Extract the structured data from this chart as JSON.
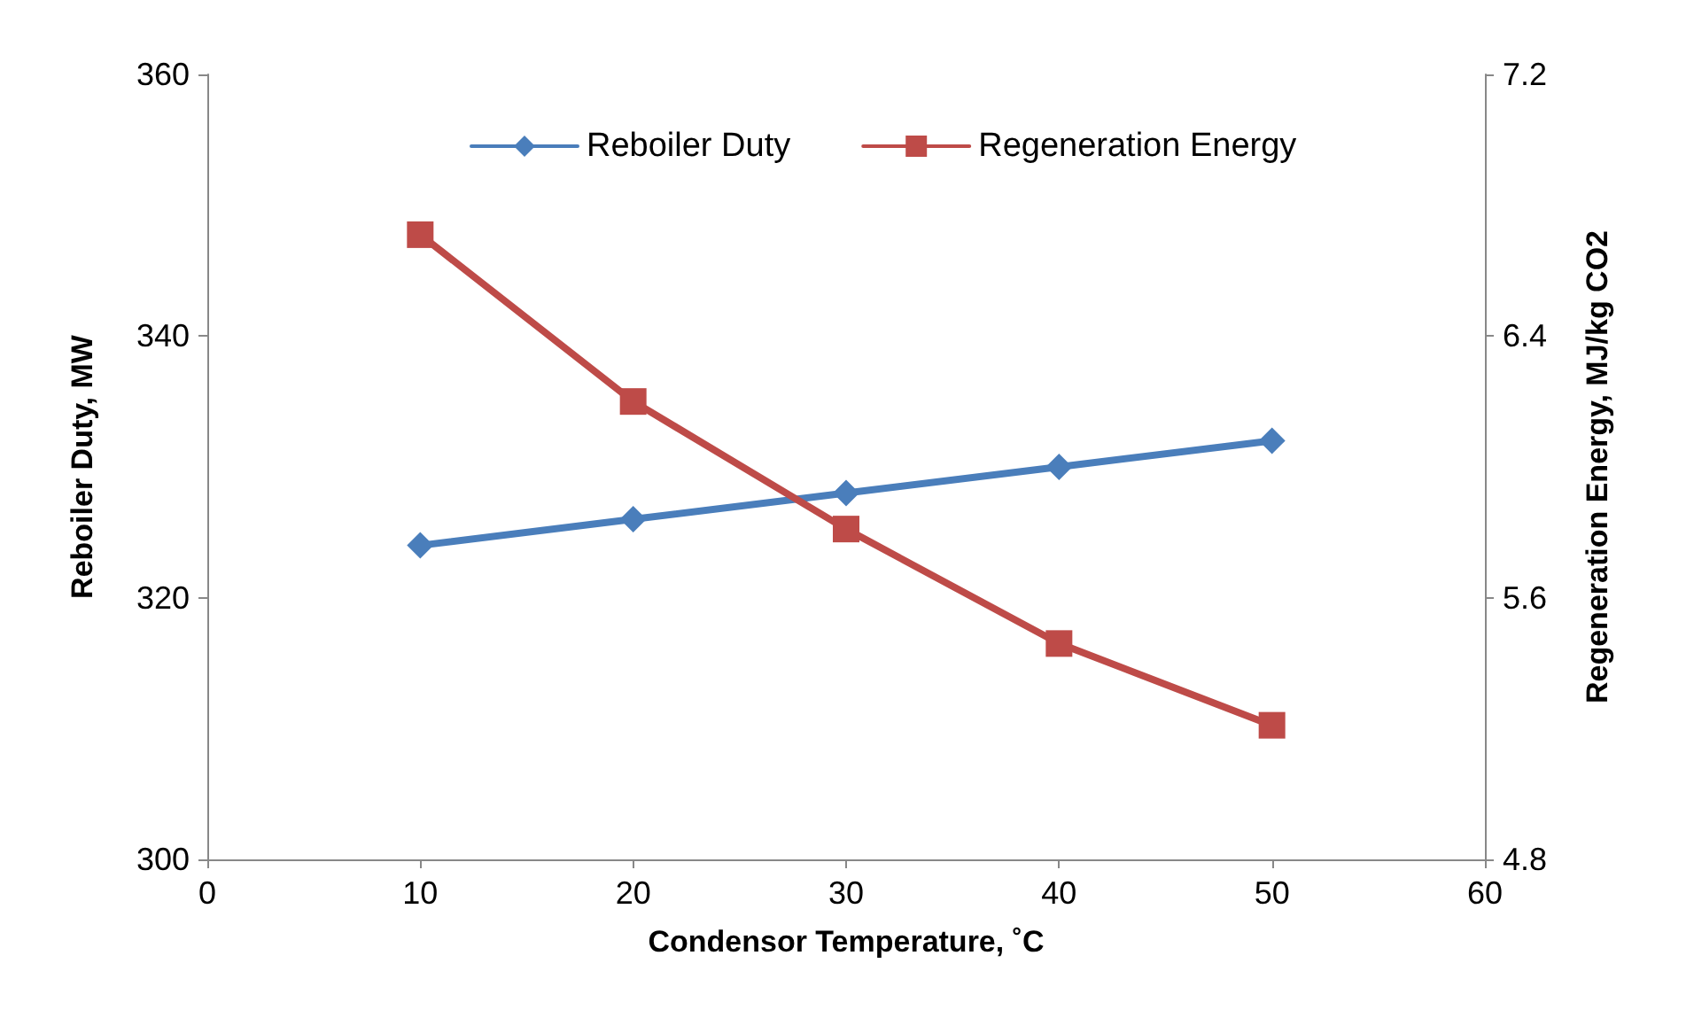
{
  "chart_data": {
    "type": "line",
    "xlabel": "Condensor Temperature, ˚C",
    "ylabel": "Reboiler Duty, MW",
    "y2label": "Regeneration Energy, MJ/kg CO2",
    "x": [
      10,
      20,
      30,
      40,
      50
    ],
    "series": [
      {
        "name": "Reboiler Duty",
        "color": "#4a7ebb",
        "values": [
          324,
          326,
          328,
          330,
          332
        ],
        "marker": "diamond"
      },
      {
        "name": "Regeneration Energy",
        "color": "#be4b48",
        "values": [
          6.71,
          6.2,
          5.81,
          5.46,
          5.21
        ],
        "marker": "square",
        "axis": "y2"
      }
    ],
    "xlim": [
      0,
      60
    ],
    "xticks": [
      0,
      10,
      20,
      30,
      40,
      50,
      60
    ],
    "ylim": [
      300,
      360
    ],
    "yticks": [
      300,
      320,
      340,
      360
    ],
    "y2lim": [
      4.8,
      7.2
    ],
    "y2ticks": [
      4.8,
      5.6,
      6.4,
      7.2
    ],
    "grid": false,
    "legend": "top",
    "line_style": "solid"
  }
}
